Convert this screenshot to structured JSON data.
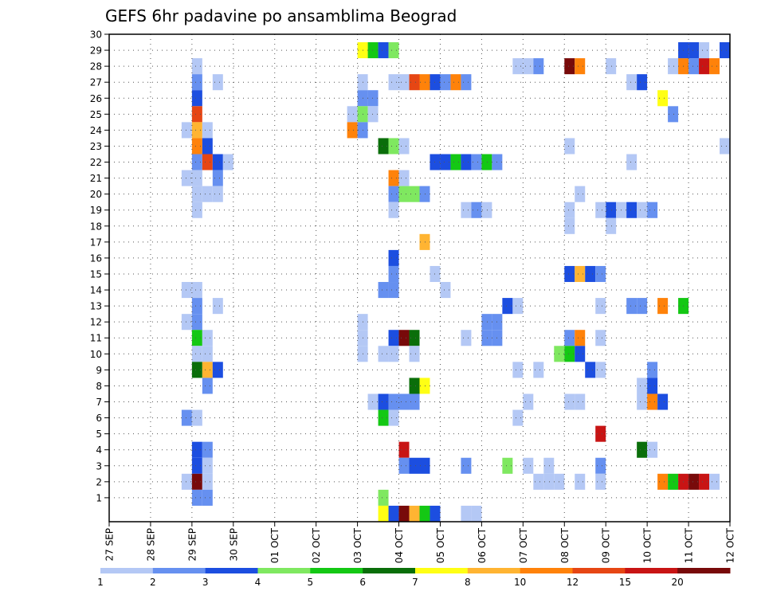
{
  "chart_data": {
    "type": "heatmap",
    "title": "GEFS 6hr padavine po ansamblima Beograd",
    "x_ticks": [
      "27 SEP",
      "28 SEP",
      "29 SEP",
      "30 SEP",
      "01 OCT",
      "02 OCT",
      "03 OCT",
      "04 OCT",
      "05 OCT",
      "06 OCT",
      "07 OCT",
      "08 OCT",
      "09 OCT",
      "10 OCT",
      "11 OCT",
      "12 OCT"
    ],
    "y_ticks": [
      1,
      2,
      3,
      4,
      5,
      6,
      7,
      8,
      9,
      10,
      11,
      12,
      13,
      14,
      15,
      16,
      17,
      18,
      19,
      20,
      21,
      22,
      23,
      24,
      25,
      26,
      27,
      28,
      29,
      30
    ],
    "grid": true,
    "legend_position": "bottom",
    "legend_labels": [
      "1",
      "2",
      "3",
      "4",
      "5",
      "6",
      "7",
      "8",
      "10",
      "12",
      "15",
      "20"
    ],
    "colors": [
      "#b4c8f5",
      "#6690f0",
      "#1c4ee0",
      "#7fe860",
      "#14c814",
      "#0a6e0a",
      "#ffff14",
      "#ffb432",
      "#ff820a",
      "#e64614",
      "#c81414",
      "#780a0a"
    ],
    "cells": [
      {
        "step": 8,
        "member": 28,
        "value": 1
      },
      {
        "step": 8,
        "member": 27,
        "value": 2
      },
      {
        "step": 8,
        "member": 26,
        "value": 3
      },
      {
        "step": 8,
        "member": 25,
        "value": 12
      },
      {
        "step": 7,
        "member": 24,
        "value": 1
      },
      {
        "step": 8,
        "member": 24,
        "value": 8
      },
      {
        "step": 9,
        "member": 24,
        "value": 1
      },
      {
        "step": 8,
        "member": 23,
        "value": 10
      },
      {
        "step": 9,
        "member": 23,
        "value": 3
      },
      {
        "step": 8,
        "member": 22,
        "value": 2
      },
      {
        "step": 9,
        "member": 22,
        "value": 12
      },
      {
        "step": 10,
        "member": 22,
        "value": 3
      },
      {
        "step": 11,
        "member": 22,
        "value": 1
      },
      {
        "step": 7,
        "member": 21,
        "value": 1
      },
      {
        "step": 8,
        "member": 21,
        "value": 1
      },
      {
        "step": 10,
        "member": 21,
        "value": 2
      },
      {
        "step": 8,
        "member": 20,
        "value": 1
      },
      {
        "step": 9,
        "member": 20,
        "value": 1
      },
      {
        "step": 10,
        "member": 20,
        "value": 1
      },
      {
        "step": 8,
        "member": 19,
        "value": 1
      },
      {
        "step": 7,
        "member": 14,
        "value": 1
      },
      {
        "step": 8,
        "member": 14,
        "value": 1
      },
      {
        "step": 8,
        "member": 13,
        "value": 2
      },
      {
        "step": 7,
        "member": 12,
        "value": 1
      },
      {
        "step": 8,
        "member": 12,
        "value": 2
      },
      {
        "step": 8,
        "member": 11,
        "value": 5
      },
      {
        "step": 9,
        "member": 11,
        "value": 1
      },
      {
        "step": 8,
        "member": 10,
        "value": 1
      },
      {
        "step": 9,
        "member": 10,
        "value": 1
      },
      {
        "step": 8,
        "member": 9,
        "value": 6
      },
      {
        "step": 9,
        "member": 9,
        "value": 8
      },
      {
        "step": 10,
        "member": 9,
        "value": 3
      },
      {
        "step": 9,
        "member": 8,
        "value": 2
      },
      {
        "step": 7,
        "member": 6,
        "value": 2
      },
      {
        "step": 8,
        "member": 6,
        "value": 1
      },
      {
        "step": 8,
        "member": 4,
        "value": 3
      },
      {
        "step": 9,
        "member": 4,
        "value": 2
      },
      {
        "step": 8,
        "member": 3,
        "value": 3
      },
      {
        "step": 9,
        "member": 3,
        "value": 1
      },
      {
        "step": 7,
        "member": 2,
        "value": 1
      },
      {
        "step": 8,
        "member": 2,
        "value": 20
      },
      {
        "step": 9,
        "member": 2,
        "value": 1
      },
      {
        "step": 8,
        "member": 1,
        "value": 2
      },
      {
        "step": 9,
        "member": 1,
        "value": 2
      },
      {
        "step": 10,
        "member": 27,
        "value": 1
      },
      {
        "step": 10,
        "member": 13,
        "value": 1
      },
      {
        "step": 24,
        "member": 29,
        "value": 7
      },
      {
        "step": 25,
        "member": 29,
        "value": 5
      },
      {
        "step": 26,
        "member": 29,
        "value": 3
      },
      {
        "step": 27,
        "member": 29,
        "value": 4
      },
      {
        "step": 24,
        "member": 27,
        "value": 1
      },
      {
        "step": 24,
        "member": 26,
        "value": 2
      },
      {
        "step": 25,
        "member": 26,
        "value": 2
      },
      {
        "step": 23,
        "member": 25,
        "value": 1
      },
      {
        "step": 24,
        "member": 25,
        "value": 4
      },
      {
        "step": 25,
        "member": 25,
        "value": 1
      },
      {
        "step": 23,
        "member": 24,
        "value": 10
      },
      {
        "step": 24,
        "member": 24,
        "value": 2
      },
      {
        "step": 26,
        "member": 23,
        "value": 6
      },
      {
        "step": 27,
        "member": 23,
        "value": 4
      },
      {
        "step": 28,
        "member": 23,
        "value": 1
      },
      {
        "step": 27,
        "member": 27,
        "value": 1
      },
      {
        "step": 28,
        "member": 27,
        "value": 1
      },
      {
        "step": 29,
        "member": 27,
        "value": 12
      },
      {
        "step": 30,
        "member": 27,
        "value": 10
      },
      {
        "step": 31,
        "member": 27,
        "value": 3
      },
      {
        "step": 32,
        "member": 27,
        "value": 2
      },
      {
        "step": 33,
        "member": 27,
        "value": 10
      },
      {
        "step": 34,
        "member": 27,
        "value": 2
      },
      {
        "step": 31,
        "member": 22,
        "value": 3
      },
      {
        "step": 32,
        "member": 22,
        "value": 3
      },
      {
        "step": 33,
        "member": 22,
        "value": 5
      },
      {
        "step": 34,
        "member": 22,
        "value": 3
      },
      {
        "step": 35,
        "member": 22,
        "value": 2
      },
      {
        "step": 36,
        "member": 22,
        "value": 5
      },
      {
        "step": 37,
        "member": 22,
        "value": 2
      },
      {
        "step": 27,
        "member": 21,
        "value": 10
      },
      {
        "step": 28,
        "member": 21,
        "value": 1
      },
      {
        "step": 27,
        "member": 20,
        "value": 2
      },
      {
        "step": 28,
        "member": 20,
        "value": 4
      },
      {
        "step": 29,
        "member": 20,
        "value": 4
      },
      {
        "step": 30,
        "member": 20,
        "value": 2
      },
      {
        "step": 27,
        "member": 19,
        "value": 1
      },
      {
        "step": 34,
        "member": 19,
        "value": 1
      },
      {
        "step": 35,
        "member": 19,
        "value": 2
      },
      {
        "step": 36,
        "member": 19,
        "value": 1
      },
      {
        "step": 30,
        "member": 17,
        "value": 8
      },
      {
        "step": 27,
        "member": 16,
        "value": 3
      },
      {
        "step": 27,
        "member": 15,
        "value": 2
      },
      {
        "step": 26,
        "member": 14,
        "value": 2
      },
      {
        "step": 27,
        "member": 14,
        "value": 2
      },
      {
        "step": 32,
        "member": 14,
        "value": 1
      },
      {
        "step": 24,
        "member": 11,
        "value": 1
      },
      {
        "step": 27,
        "member": 11,
        "value": 3
      },
      {
        "step": 28,
        "member": 11,
        "value": 20
      },
      {
        "step": 29,
        "member": 11,
        "value": 6
      },
      {
        "step": 34,
        "member": 11,
        "value": 1
      },
      {
        "step": 36,
        "member": 11,
        "value": 2
      },
      {
        "step": 37,
        "member": 11,
        "value": 2
      },
      {
        "step": 24,
        "member": 12,
        "value": 1
      },
      {
        "step": 36,
        "member": 12,
        "value": 2
      },
      {
        "step": 37,
        "member": 12,
        "value": 2
      },
      {
        "step": 24,
        "member": 10,
        "value": 1
      },
      {
        "step": 26,
        "member": 10,
        "value": 1
      },
      {
        "step": 27,
        "member": 10,
        "value": 1
      },
      {
        "step": 29,
        "member": 10,
        "value": 1
      },
      {
        "step": 29,
        "member": 8,
        "value": 6
      },
      {
        "step": 30,
        "member": 8,
        "value": 7
      },
      {
        "step": 25,
        "member": 7,
        "value": 1
      },
      {
        "step": 26,
        "member": 7,
        "value": 3
      },
      {
        "step": 27,
        "member": 7,
        "value": 2
      },
      {
        "step": 28,
        "member": 7,
        "value": 2
      },
      {
        "step": 29,
        "member": 7,
        "value": 2
      },
      {
        "step": 26,
        "member": 6,
        "value": 5
      },
      {
        "step": 27,
        "member": 6,
        "value": 1
      },
      {
        "step": 28,
        "member": 4,
        "value": 15
      },
      {
        "step": 28,
        "member": 3,
        "value": 2
      },
      {
        "step": 29,
        "member": 3,
        "value": 3
      },
      {
        "step": 30,
        "member": 3,
        "value": 3
      },
      {
        "step": 34,
        "member": 3,
        "value": 2
      },
      {
        "step": 26,
        "member": 1,
        "value": 4
      },
      {
        "step": 26,
        "member": 0,
        "value": 7
      },
      {
        "step": 27,
        "member": 0,
        "value": 3
      },
      {
        "step": 28,
        "member": 0,
        "value": 20
      },
      {
        "step": 29,
        "member": 0,
        "value": 8
      },
      {
        "step": 30,
        "member": 0,
        "value": 5
      },
      {
        "step": 31,
        "member": 0,
        "value": 3
      },
      {
        "step": 34,
        "member": 0,
        "value": 1
      },
      {
        "step": 35,
        "member": 0,
        "value": 1
      },
      {
        "step": 31,
        "member": 15,
        "value": 1
      },
      {
        "step": 38,
        "member": 13,
        "value": 3
      },
      {
        "step": 39,
        "member": 28,
        "value": 1
      },
      {
        "step": 40,
        "member": 28,
        "value": 1
      },
      {
        "step": 41,
        "member": 28,
        "value": 2
      },
      {
        "step": 44,
        "member": 28,
        "value": 20
      },
      {
        "step": 45,
        "member": 28,
        "value": 10
      },
      {
        "step": 48,
        "member": 28,
        "value": 1
      },
      {
        "step": 44,
        "member": 23,
        "value": 1
      },
      {
        "step": 48,
        "member": 19,
        "value": 3
      },
      {
        "step": 44,
        "member": 19,
        "value": 1
      },
      {
        "step": 45,
        "member": 20,
        "value": 1
      },
      {
        "step": 44,
        "member": 18,
        "value": 1
      },
      {
        "step": 48,
        "member": 18,
        "value": 1
      },
      {
        "step": 47,
        "member": 19,
        "value": 1
      },
      {
        "step": 50,
        "member": 27,
        "value": 1
      },
      {
        "step": 51,
        "member": 27,
        "value": 3
      },
      {
        "step": 50,
        "member": 22,
        "value": 1
      },
      {
        "step": 49,
        "member": 19,
        "value": 1
      },
      {
        "step": 50,
        "member": 19,
        "value": 3
      },
      {
        "step": 51,
        "member": 19,
        "value": 1
      },
      {
        "step": 52,
        "member": 19,
        "value": 2
      },
      {
        "step": 44,
        "member": 15,
        "value": 3
      },
      {
        "step": 45,
        "member": 15,
        "value": 8
      },
      {
        "step": 46,
        "member": 15,
        "value": 3
      },
      {
        "step": 47,
        "member": 15,
        "value": 2
      },
      {
        "step": 39,
        "member": 13,
        "value": 1
      },
      {
        "step": 47,
        "member": 13,
        "value": 1
      },
      {
        "step": 50,
        "member": 13,
        "value": 2
      },
      {
        "step": 51,
        "member": 13,
        "value": 2
      },
      {
        "step": 53,
        "member": 13,
        "value": 10
      },
      {
        "step": 55,
        "member": 13,
        "value": 5
      },
      {
        "step": 44,
        "member": 11,
        "value": 2
      },
      {
        "step": 45,
        "member": 11,
        "value": 10
      },
      {
        "step": 47,
        "member": 11,
        "value": 1
      },
      {
        "step": 43,
        "member": 10,
        "value": 4
      },
      {
        "step": 44,
        "member": 10,
        "value": 5
      },
      {
        "step": 45,
        "member": 10,
        "value": 3
      },
      {
        "step": 39,
        "member": 9,
        "value": 1
      },
      {
        "step": 41,
        "member": 9,
        "value": 1
      },
      {
        "step": 46,
        "member": 9,
        "value": 3
      },
      {
        "step": 47,
        "member": 9,
        "value": 1
      },
      {
        "step": 52,
        "member": 9,
        "value": 2
      },
      {
        "step": 51,
        "member": 8,
        "value": 1
      },
      {
        "step": 52,
        "member": 8,
        "value": 3
      },
      {
        "step": 40,
        "member": 7,
        "value": 1
      },
      {
        "step": 44,
        "member": 7,
        "value": 1
      },
      {
        "step": 45,
        "member": 7,
        "value": 1
      },
      {
        "step": 51,
        "member": 7,
        "value": 1
      },
      {
        "step": 52,
        "member": 7,
        "value": 10
      },
      {
        "step": 53,
        "member": 7,
        "value": 3
      },
      {
        "step": 39,
        "member": 6,
        "value": 1
      },
      {
        "step": 47,
        "member": 5,
        "value": 15
      },
      {
        "step": 51,
        "member": 4,
        "value": 6
      },
      {
        "step": 52,
        "member": 4,
        "value": 1
      },
      {
        "step": 38,
        "member": 3,
        "value": 4
      },
      {
        "step": 40,
        "member": 3,
        "value": 1
      },
      {
        "step": 42,
        "member": 3,
        "value": 1
      },
      {
        "step": 47,
        "member": 3,
        "value": 2
      },
      {
        "step": 41,
        "member": 2,
        "value": 1
      },
      {
        "step": 42,
        "member": 2,
        "value": 1
      },
      {
        "step": 43,
        "member": 2,
        "value": 1
      },
      {
        "step": 45,
        "member": 2,
        "value": 1
      },
      {
        "step": 47,
        "member": 2,
        "value": 1
      },
      {
        "step": 53,
        "member": 2,
        "value": 10
      },
      {
        "step": 54,
        "member": 2,
        "value": 5
      },
      {
        "step": 55,
        "member": 2,
        "value": 15
      },
      {
        "step": 56,
        "member": 2,
        "value": 20
      },
      {
        "step": 57,
        "member": 2,
        "value": 15
      },
      {
        "step": 58,
        "member": 2,
        "value": 1
      },
      {
        "step": 53,
        "member": 26,
        "value": 7
      },
      {
        "step": 54,
        "member": 25,
        "value": 2
      },
      {
        "step": 54,
        "member": 28,
        "value": 1
      },
      {
        "step": 55,
        "member": 28,
        "value": 10
      },
      {
        "step": 56,
        "member": 28,
        "value": 2
      },
      {
        "step": 57,
        "member": 28,
        "value": 15
      },
      {
        "step": 58,
        "member": 28,
        "value": 10
      },
      {
        "step": 55,
        "member": 29,
        "value": 3
      },
      {
        "step": 56,
        "member": 29,
        "value": 3
      },
      {
        "step": 57,
        "member": 29,
        "value": 1
      },
      {
        "step": 59,
        "member": 29,
        "value": 3
      },
      {
        "step": 59,
        "member": 23,
        "value": 1
      }
    ]
  }
}
